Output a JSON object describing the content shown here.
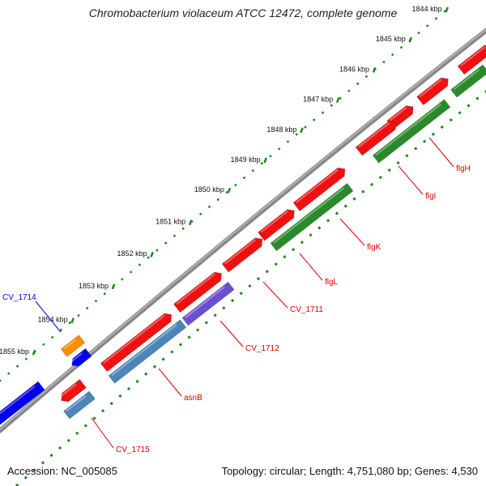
{
  "title": "Chromobacterium violaceum ATCC 12472, complete genome",
  "footer": {
    "accession": "Accession: NC_005085",
    "summary": "Topology: circular; Length: 4,751,080 bp; Genes: 4,530"
  },
  "scale_ticks": [
    {
      "label": "1844 kbp",
      "t": 0.985
    },
    {
      "label": "1845 kbp",
      "t": 0.905
    },
    {
      "label": "1846 kbp",
      "t": 0.825
    },
    {
      "label": "1847 kbp",
      "t": 0.745
    },
    {
      "label": "1848 kbp",
      "t": 0.665
    },
    {
      "label": "1849 kbp",
      "t": 0.585
    },
    {
      "label": "1850 kbp",
      "t": 0.505
    },
    {
      "label": "1851 kbp",
      "t": 0.42
    },
    {
      "label": "1852 kbp",
      "t": 0.335
    },
    {
      "label": "1853 kbp",
      "t": 0.25
    },
    {
      "label": "1854 kbp",
      "t": 0.16
    },
    {
      "label": "1855 kbp",
      "t": 0.075
    }
  ],
  "colors": {
    "backbone": "#888888",
    "scale_dots": "#1a8a1a",
    "red_feature": "#ee1111",
    "green_feature": "#2a8a2a",
    "steel_feature": "#4a86b8",
    "purple_feature": "#6a4fd0",
    "orange_feature": "#ff8c00",
    "blue_feature": "#0000ee",
    "gene_label_red": "#dd0000",
    "gene_label_blue": "#0000dd"
  },
  "gene_labels": [
    {
      "text": "flgH",
      "color": "red"
    },
    {
      "text": "flgI",
      "color": "red"
    },
    {
      "text": "flgK",
      "color": "red"
    },
    {
      "text": "flgL",
      "color": "red"
    },
    {
      "text": "CV_1711",
      "color": "red"
    },
    {
      "text": "CV_1712",
      "color": "red"
    },
    {
      "text": "asnB",
      "color": "red"
    },
    {
      "text": "CV_1715",
      "color": "red"
    },
    {
      "text": "CV_1714",
      "color": "blue"
    }
  ]
}
